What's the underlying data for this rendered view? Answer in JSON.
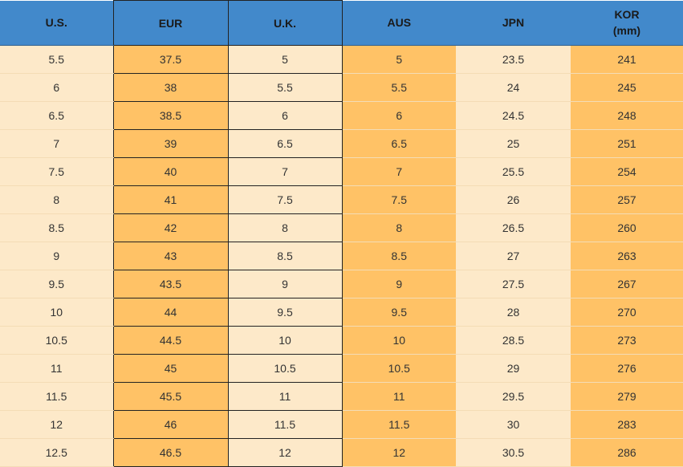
{
  "table": {
    "header": [
      "U.S.",
      "EUR",
      "U.K.",
      "AUS",
      "JPN",
      "KOR\n(mm)"
    ],
    "rows": [
      [
        "5.5",
        "37.5",
        "5",
        "5",
        "23.5",
        "241"
      ],
      [
        "6",
        "38",
        "5.5",
        "5.5",
        "24",
        "245"
      ],
      [
        "6.5",
        "38.5",
        "6",
        "6",
        "24.5",
        "248"
      ],
      [
        "7",
        "39",
        "6.5",
        "6.5",
        "25",
        "251"
      ],
      [
        "7.5",
        "40",
        "7",
        "7",
        "25.5",
        "254"
      ],
      [
        "8",
        "41",
        "7.5",
        "7.5",
        "26",
        "257"
      ],
      [
        "8.5",
        "42",
        "8",
        "8",
        "26.5",
        "260"
      ],
      [
        "9",
        "43",
        "8.5",
        "8.5",
        "27",
        "263"
      ],
      [
        "9.5",
        "43.5",
        "9",
        "9",
        "27.5",
        "267"
      ],
      [
        "10",
        "44",
        "9.5",
        "9.5",
        "28",
        "270"
      ],
      [
        "10.5",
        "44.5",
        "10",
        "10",
        "28.5",
        "273"
      ],
      [
        "11",
        "45",
        "10.5",
        "10.5",
        "29",
        "276"
      ],
      [
        "11.5",
        "45.5",
        "11",
        "11",
        "29.5",
        "279"
      ],
      [
        "12",
        "46",
        "11.5",
        "11.5",
        "30",
        "283"
      ],
      [
        "12.5",
        "46.5",
        "12",
        "12",
        "30.5",
        "286"
      ]
    ]
  }
}
